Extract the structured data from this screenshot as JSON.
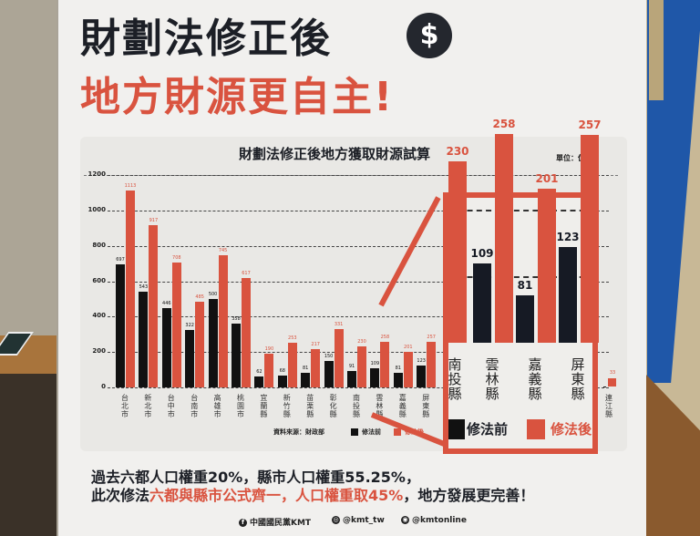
{
  "poster": {
    "headline_line1": "財劃法修正後",
    "headline_icon": "dollar-coin-icon",
    "headline_icon_glyph": "$",
    "headline_line2": "地方財源更自主!",
    "colors": {
      "dark": "#1c1f26",
      "accent": "#d9533f",
      "background": "#f1f0ee"
    }
  },
  "chart_data": {
    "type": "bar",
    "title": "財劃法修正後地方獲取財源試算",
    "unit_label": "單位：億元",
    "xlabel": "",
    "ylabel": "",
    "ylim": [
      0,
      1200
    ],
    "yticks": [
      0,
      200,
      400,
      600,
      800,
      1000,
      1200
    ],
    "grid": true,
    "legend_position": "bottom-right",
    "source": "資料來源：財政部",
    "categories": [
      "台北市",
      "新北市",
      "台中市",
      "台南市",
      "高雄市",
      "桃園市",
      "宜蘭縣",
      "新竹縣",
      "苗栗縣",
      "彰化縣",
      "南投縣",
      "雲林縣",
      "嘉義縣",
      "屏東縣",
      "連江縣"
    ],
    "series": [
      {
        "name": "修法前",
        "color": "#111111",
        "values": [
          697,
          543,
          446,
          322,
          500,
          358,
          62,
          68,
          81,
          150,
          91,
          109,
          81,
          123,
          4
        ]
      },
      {
        "name": "修法後",
        "color": "#d9533f",
        "values": [
          1113,
          917,
          708,
          485,
          745,
          617,
          190,
          253,
          217,
          331,
          230,
          258,
          201,
          257,
          33
        ]
      }
    ],
    "callout": {
      "categories": [
        "南投縣",
        "雲林縣",
        "嘉義縣",
        "屏東縣"
      ],
      "before": [
        null,
        109,
        81,
        123
      ],
      "after": [
        230,
        258,
        201,
        257
      ],
      "legend_before": "修法前",
      "legend_after": "修法後"
    }
  },
  "chart_labels": {
    "yticks": [
      "0",
      "200",
      "400",
      "600",
      "800",
      "1000",
      "1200"
    ],
    "x": [
      "台北市",
      "新北市",
      "台中市",
      "台南市",
      "高雄市",
      "桃園市",
      "宜蘭縣",
      "新竹縣",
      "苗栗縣",
      "彰化縣",
      "南投縣",
      "雲林縣",
      "嘉義縣",
      "屏東縣"
    ],
    "last_x": "連江縣",
    "before_vals": [
      "697",
      "543",
      "446",
      "322",
      "500",
      "358",
      "62",
      "68",
      "81",
      "150",
      "91",
      "109",
      "81",
      "123"
    ],
    "after_vals": [
      "1113",
      "917",
      "708",
      "485",
      "745",
      "617",
      "190",
      "253",
      "217",
      "331",
      "230",
      "258",
      "201",
      "257"
    ],
    "last_after": "33",
    "legend_before": "修法前",
    "legend_after": "修法後"
  },
  "callout_labels": {
    "after": [
      "230",
      "258",
      "201",
      "257"
    ],
    "before": [
      "109",
      "81",
      "123"
    ],
    "x": [
      "南投縣",
      "雲林縣",
      "嘉義縣",
      "屏東縣"
    ],
    "legend_before": "修法前",
    "legend_after": "修法後"
  },
  "footer": {
    "line1": "過去六都人口權重20%，縣市人口權重55.25%，",
    "line2_a": "此次修法",
    "line2_b": "六都與縣市公式齊一，人口權重取45%",
    "line2_c": "，地方發展更完善！",
    "social": [
      {
        "icon": "facebook-icon",
        "glyph": "f",
        "label": "中國國民黨KMT"
      },
      {
        "icon": "instagram-icon",
        "glyph": "◎",
        "label": "@kmt_tw"
      },
      {
        "icon": "line-icon",
        "glyph": "◉",
        "label": "@kmtonline"
      }
    ]
  }
}
